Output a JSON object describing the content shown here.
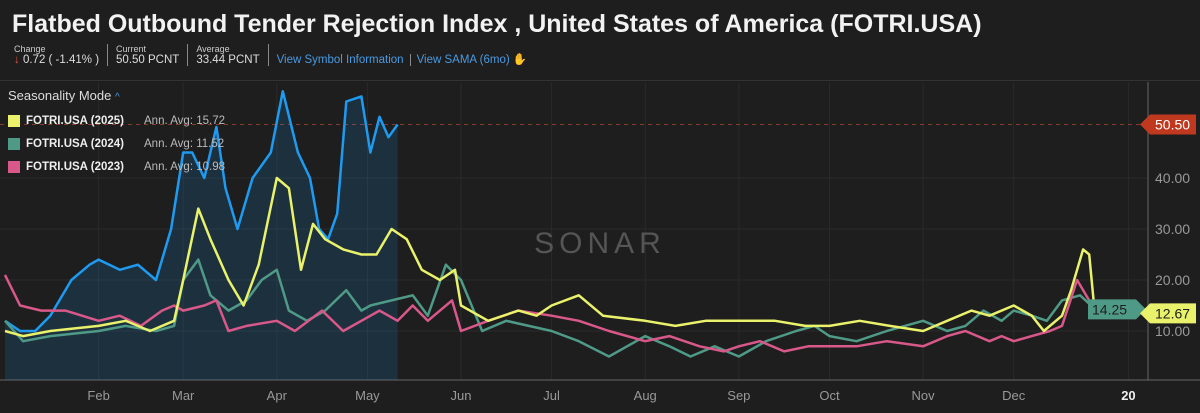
{
  "header": {
    "title": "Flatbed Outbound Tender Rejection Index , United States of America (FOTRI.USA)",
    "change_label": "Change",
    "change_value": "0.72 ( -1.41% )",
    "current_label": "Current",
    "current_value": "50.50 PCNT",
    "average_label": "Average",
    "average_value": "33.44 PCNT",
    "link_symbol": "View Symbol Information",
    "link_sama": "View SAMA (6mo)"
  },
  "legend": {
    "mode": "Seasonality Mode",
    "items": [
      {
        "name": "FOTRI.USA (2025)",
        "avg": "Ann. Avg: 15.72",
        "color": "#e9f26a"
      },
      {
        "name": "FOTRI.USA (2024)",
        "avg": "Ann. Avg: 11.52",
        "color": "#4f9a86"
      },
      {
        "name": "FOTRI.USA (2023)",
        "avg": "Ann. Avg: 10.98",
        "color": "#d9588a"
      }
    ]
  },
  "watermark": "SONAR",
  "chart_data": {
    "type": "line",
    "ylim": [
      0,
      57
    ],
    "xlim_days": [
      0,
      372
    ],
    "y_ticks": [
      "10.00",
      "20.00",
      "30.00",
      "40.00"
    ],
    "y_tick_values": [
      10,
      20,
      30,
      40
    ],
    "x_ticks": [
      {
        "label": "Feb",
        "day": 31
      },
      {
        "label": "Mar",
        "day": 59
      },
      {
        "label": "Apr",
        "day": 90
      },
      {
        "label": "May",
        "day": 120
      },
      {
        "label": "Jun",
        "day": 151
      },
      {
        "label": "Jul",
        "day": 181
      },
      {
        "label": "Aug",
        "day": 212
      },
      {
        "label": "Sep",
        "day": 243
      },
      {
        "label": "Oct",
        "day": 273
      },
      {
        "label": "Nov",
        "day": 304
      },
      {
        "label": "Dec",
        "day": 334
      },
      {
        "label": "20",
        "day": 372
      }
    ],
    "current_marker": {
      "value": 50.5,
      "label": "50.50",
      "color": "#c0391e"
    },
    "end_labels": [
      {
        "value": 12.67,
        "label": "12.67",
        "color": "#e9f26a"
      },
      {
        "value": 14.25,
        "label": "14.25",
        "color": "#4f9a86"
      }
    ],
    "series": [
      {
        "color": "#1e9bf0",
        "fill": true,
        "points": [
          [
            0,
            12
          ],
          [
            5,
            10
          ],
          [
            10,
            10
          ],
          [
            15,
            13
          ],
          [
            22,
            20
          ],
          [
            28,
            23
          ],
          [
            31,
            24
          ],
          [
            38,
            22
          ],
          [
            44,
            23
          ],
          [
            50,
            20
          ],
          [
            55,
            30
          ],
          [
            59,
            45
          ],
          [
            62,
            45
          ],
          [
            66,
            40
          ],
          [
            70,
            50
          ],
          [
            73,
            38
          ],
          [
            77,
            30
          ],
          [
            82,
            40
          ],
          [
            88,
            45
          ],
          [
            92,
            57
          ],
          [
            97,
            45
          ],
          [
            101,
            40
          ],
          [
            104,
            30
          ],
          [
            107,
            28
          ],
          [
            110,
            33
          ],
          [
            113,
            55
          ],
          [
            118,
            56
          ],
          [
            121,
            45
          ],
          [
            124,
            52
          ],
          [
            127,
            48
          ],
          [
            130,
            50.5
          ]
        ]
      },
      {
        "color": "#4f9a86",
        "points": [
          [
            0,
            12
          ],
          [
            6,
            8
          ],
          [
            15,
            9
          ],
          [
            31,
            10
          ],
          [
            40,
            11
          ],
          [
            50,
            10
          ],
          [
            56,
            11
          ],
          [
            59,
            20
          ],
          [
            64,
            24
          ],
          [
            68,
            17
          ],
          [
            74,
            14
          ],
          [
            80,
            16
          ],
          [
            85,
            20
          ],
          [
            90,
            22
          ],
          [
            94,
            14
          ],
          [
            100,
            12
          ],
          [
            106,
            14
          ],
          [
            113,
            18
          ],
          [
            118,
            14
          ],
          [
            121,
            15
          ],
          [
            128,
            16
          ],
          [
            135,
            17
          ],
          [
            140,
            13
          ],
          [
            146,
            23
          ],
          [
            151,
            20
          ],
          [
            158,
            10
          ],
          [
            166,
            12
          ],
          [
            181,
            10
          ],
          [
            190,
            8
          ],
          [
            200,
            5
          ],
          [
            206,
            7
          ],
          [
            212,
            9
          ],
          [
            220,
            7
          ],
          [
            227,
            5
          ],
          [
            235,
            7
          ],
          [
            243,
            5
          ],
          [
            252,
            8
          ],
          [
            262,
            10
          ],
          [
            268,
            11
          ],
          [
            273,
            9
          ],
          [
            282,
            8
          ],
          [
            292,
            10
          ],
          [
            304,
            12
          ],
          [
            312,
            10
          ],
          [
            318,
            11
          ],
          [
            324,
            14
          ],
          [
            330,
            12
          ],
          [
            334,
            14
          ],
          [
            340,
            13
          ],
          [
            345,
            12
          ],
          [
            350,
            16
          ],
          [
            356,
            17
          ],
          [
            361,
            14.25
          ]
        ]
      },
      {
        "color": "#d9588a",
        "points": [
          [
            0,
            21
          ],
          [
            5,
            15
          ],
          [
            12,
            14
          ],
          [
            20,
            14
          ],
          [
            31,
            12
          ],
          [
            38,
            13
          ],
          [
            45,
            11
          ],
          [
            52,
            14
          ],
          [
            56,
            15
          ],
          [
            59,
            14
          ],
          [
            66,
            15
          ],
          [
            70,
            16
          ],
          [
            74,
            10
          ],
          [
            80,
            11
          ],
          [
            90,
            12
          ],
          [
            96,
            10
          ],
          [
            105,
            14
          ],
          [
            112,
            10
          ],
          [
            118,
            12
          ],
          [
            124,
            14
          ],
          [
            130,
            12
          ],
          [
            135,
            15
          ],
          [
            140,
            12
          ],
          [
            148,
            16
          ],
          [
            151,
            10
          ],
          [
            160,
            12
          ],
          [
            170,
            14
          ],
          [
            181,
            13
          ],
          [
            190,
            12
          ],
          [
            200,
            10
          ],
          [
            212,
            8
          ],
          [
            220,
            9
          ],
          [
            230,
            7
          ],
          [
            238,
            6
          ],
          [
            243,
            7
          ],
          [
            250,
            8
          ],
          [
            258,
            6
          ],
          [
            266,
            7
          ],
          [
            273,
            7
          ],
          [
            282,
            7
          ],
          [
            292,
            8
          ],
          [
            304,
            7
          ],
          [
            312,
            9
          ],
          [
            318,
            10
          ],
          [
            326,
            8
          ],
          [
            330,
            9
          ],
          [
            334,
            8
          ],
          [
            340,
            9
          ],
          [
            346,
            10
          ],
          [
            350,
            11
          ],
          [
            355,
            20
          ],
          [
            361,
            14
          ]
        ]
      },
      {
        "color": "#e9f26a",
        "points": [
          [
            0,
            10
          ],
          [
            6,
            9
          ],
          [
            15,
            10
          ],
          [
            31,
            11
          ],
          [
            40,
            12
          ],
          [
            48,
            10
          ],
          [
            56,
            12
          ],
          [
            59,
            20
          ],
          [
            64,
            34
          ],
          [
            68,
            28
          ],
          [
            74,
            20
          ],
          [
            79,
            15
          ],
          [
            84,
            23
          ],
          [
            90,
            40
          ],
          [
            94,
            38
          ],
          [
            98,
            22
          ],
          [
            102,
            31
          ],
          [
            106,
            28
          ],
          [
            112,
            26
          ],
          [
            118,
            25
          ],
          [
            123,
            25
          ],
          [
            128,
            30
          ],
          [
            133,
            28
          ],
          [
            138,
            22
          ],
          [
            144,
            20
          ],
          [
            149,
            22
          ],
          [
            151,
            15
          ],
          [
            160,
            12
          ],
          [
            170,
            14
          ],
          [
            176,
            13
          ],
          [
            181,
            15
          ],
          [
            190,
            17
          ],
          [
            198,
            13
          ],
          [
            212,
            12
          ],
          [
            222,
            11
          ],
          [
            232,
            12
          ],
          [
            243,
            12
          ],
          [
            255,
            12
          ],
          [
            265,
            11
          ],
          [
            273,
            11
          ],
          [
            283,
            12
          ],
          [
            293,
            11
          ],
          [
            304,
            10
          ],
          [
            312,
            12
          ],
          [
            320,
            14
          ],
          [
            326,
            13
          ],
          [
            334,
            15
          ],
          [
            340,
            13
          ],
          [
            344,
            10
          ],
          [
            350,
            13
          ],
          [
            353,
            18
          ],
          [
            357,
            26
          ],
          [
            359,
            25
          ],
          [
            361,
            12.67
          ]
        ]
      }
    ]
  }
}
